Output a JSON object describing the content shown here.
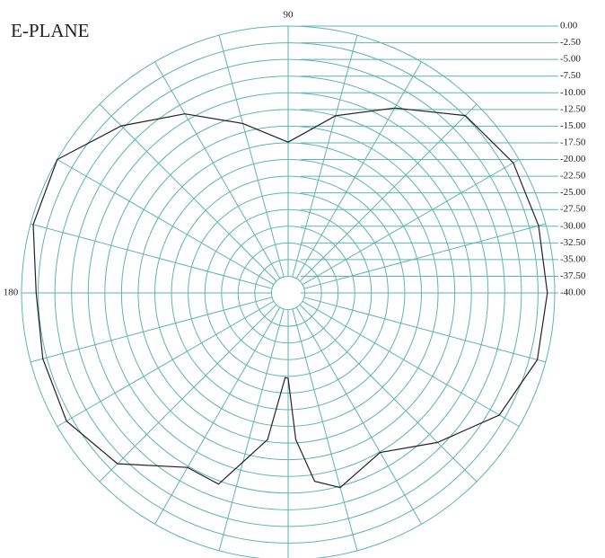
{
  "chart_data": {
    "type": "polar",
    "title": "E-PLANE",
    "x": [
      0,
      15,
      30,
      45,
      60,
      75,
      90,
      105,
      120,
      135,
      150,
      165,
      180,
      195,
      210,
      225,
      240,
      250,
      262,
      268,
      270,
      273,
      278,
      285,
      300,
      315,
      330,
      345
    ],
    "values": [
      -1.1,
      -1.1,
      -1,
      -2.4,
      -8,
      -12.5,
      -17.4,
      -13.7,
      -9,
      -4.6,
      0,
      -0.4,
      -2.2,
      -1.9,
      -1.6,
      -3.8,
      -9.8,
      -9.5,
      -17.8,
      -27.3,
      -27.2,
      -18,
      -11.5,
      -9.8,
      -12.4,
      -8.3,
      -3.4,
      -1.3
    ],
    "color": "#222222",
    "ylim": [
      -40,
      0
    ],
    "yticks": [
      {
        "value": 0,
        "label": "0.00"
      },
      {
        "value": -2.5,
        "label": "-2.50"
      },
      {
        "value": -5,
        "label": "-5.00"
      },
      {
        "value": -7.5,
        "label": "-7.50"
      },
      {
        "value": -10,
        "label": "-10.00"
      },
      {
        "value": -12.5,
        "label": "-12.50"
      },
      {
        "value": -15,
        "label": "-15.00"
      },
      {
        "value": -17.5,
        "label": "-17.50"
      },
      {
        "value": -20,
        "label": "-20.00"
      },
      {
        "value": -22.5,
        "label": "-22.50"
      },
      {
        "value": -25,
        "label": "-25.00"
      },
      {
        "value": -27.5,
        "label": "-27.50"
      },
      {
        "value": -30,
        "label": "-30.00"
      },
      {
        "value": -32.5,
        "label": "-32.50"
      },
      {
        "value": -35,
        "label": "-35.00"
      },
      {
        "value": -37.5,
        "label": "-37.50"
      },
      {
        "value": -40,
        "label": "-40.00"
      }
    ],
    "xticks": [
      90,
      180
    ],
    "spokes": 24,
    "grid_color": "#5fb3b3"
  }
}
